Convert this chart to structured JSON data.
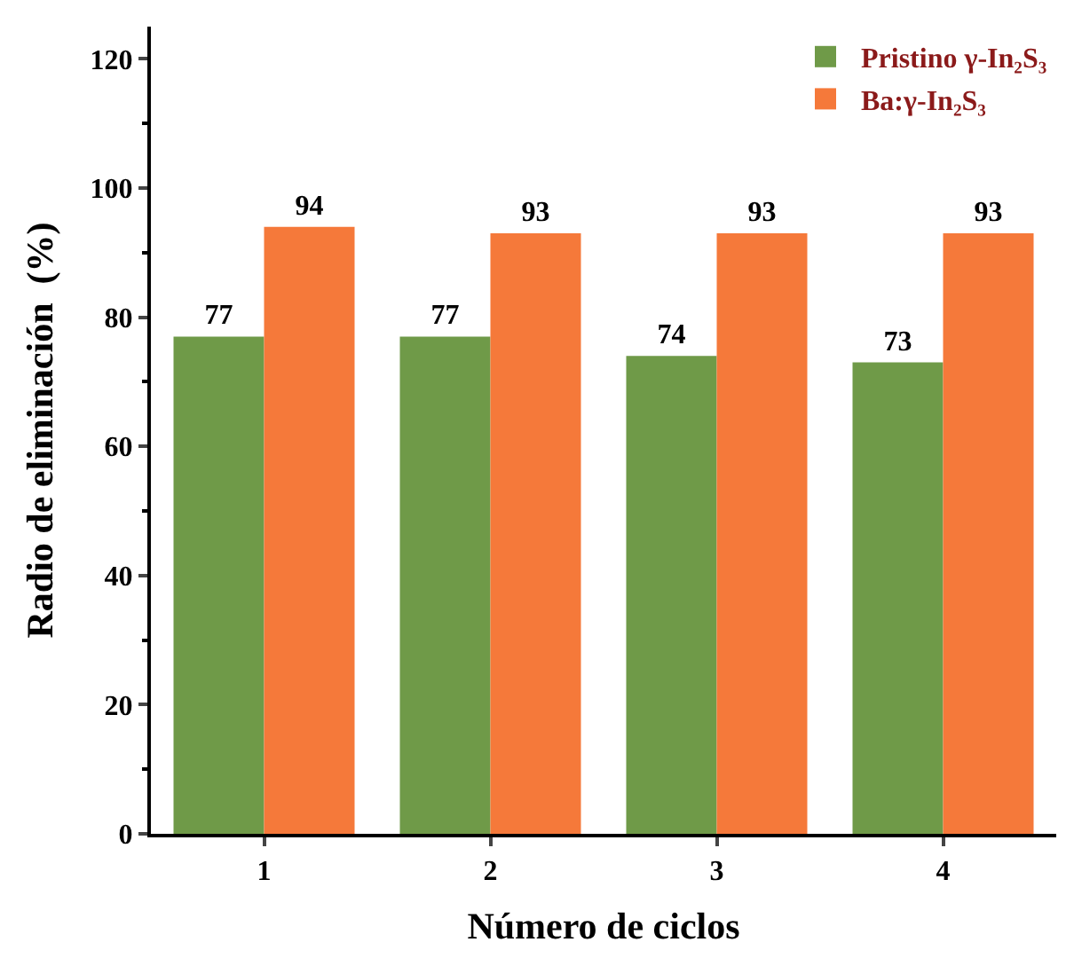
{
  "chart_data": {
    "type": "bar",
    "xlabel": "Número de ciclos",
    "ylabel": "Radio de eliminación  (%)",
    "categories": [
      "1",
      "2",
      "3",
      "4"
    ],
    "series": [
      {
        "name": "Pristino γ-In₂S₃",
        "color": "#6f9a48",
        "values": [
          77,
          77,
          74,
          73
        ]
      },
      {
        "name": "Ba:γ-In₂S₃",
        "color": "#f5793a",
        "values": [
          94,
          93,
          93,
          93
        ]
      }
    ],
    "ylim": [
      0,
      125
    ],
    "yticks": [
      0,
      20,
      40,
      60,
      80,
      100,
      120
    ],
    "legend": "top right",
    "data_labels": true
  }
}
